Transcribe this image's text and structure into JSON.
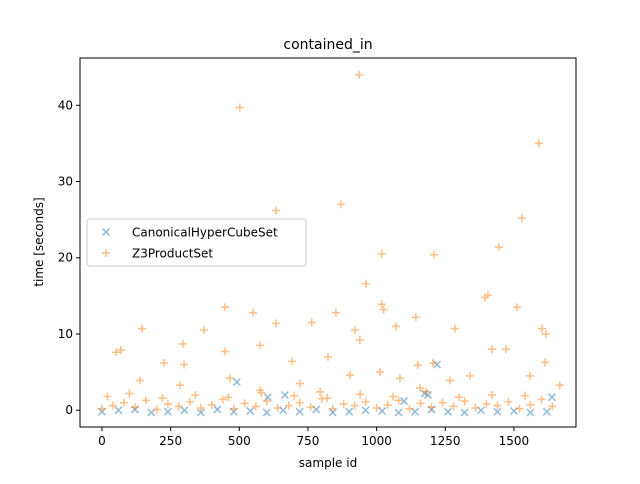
{
  "chart_data": {
    "type": "scatter",
    "title": "contained_in",
    "x_label": "sample id",
    "y_label": "time [seconds]",
    "xlim": [
      -80,
      1726
    ],
    "ylim": [
      -2.2,
      46.2
    ],
    "xticks": [
      0,
      250,
      500,
      750,
      1000,
      1250,
      1500
    ],
    "yticks": [
      0,
      10,
      20,
      30,
      40
    ],
    "grid": false,
    "legend": "center left",
    "series": [
      {
        "name": "CanonicalHyperCubeSet",
        "color": "#1f77b4",
        "marker": "x",
        "x": [
          0,
          60,
          120,
          180,
          240,
          300,
          360,
          420,
          480,
          540,
          600,
          660,
          720,
          780,
          840,
          900,
          960,
          1020,
          1080,
          1140,
          1200,
          1260,
          1320,
          1380,
          1440,
          1500,
          1560,
          1620,
          491,
          1220,
          1187,
          1638,
          666,
          604,
          1175,
          1100
        ],
        "values": [
          -0.2,
          0,
          0.1,
          -0.3,
          -0.2,
          0,
          -0.3,
          0.1,
          -0.2,
          -0.1,
          -0.3,
          0,
          -0.2,
          0.1,
          -0.3,
          -0.2,
          0,
          -0.1,
          -0.3,
          -0.2,
          0.1,
          -0.2,
          -0.3,
          0,
          -0.2,
          -0.1,
          -0.3,
          -0.2,
          3.7,
          6,
          2,
          1.7,
          2,
          1.7,
          2.2,
          1.2
        ]
      },
      {
        "name": "Z3ProductSet",
        "color": "#ff7f0e",
        "marker": "+",
        "x": [
          936,
          502,
          1591,
          870,
          633,
          1529,
          1445,
          1019,
          1209,
          961,
          1405,
          1394,
          448,
          1019,
          1511,
          550,
          852,
          1026,
          1143,
          146,
          371,
          633,
          764,
          1070,
          1285,
          1602,
          1616,
          921,
          939,
          295,
          575,
          51,
          69,
          1420,
          1471,
          1613,
          226,
          299,
          692,
          823,
          1205,
          1150,
          448,
          138,
          284,
          466,
          721,
          903,
          1012,
          1085,
          1267,
          1340,
          1558,
          1667,
          575,
          794,
          1158,
          0,
          40,
          80,
          120,
          160,
          200,
          240,
          280,
          320,
          360,
          400,
          440,
          480,
          520,
          560,
          600,
          640,
          680,
          720,
          760,
          800,
          840,
          880,
          920,
          960,
          1000,
          1040,
          1080,
          1120,
          1160,
          1200,
          1240,
          1280,
          1320,
          1360,
          1400,
          1440,
          1480,
          1520,
          1560,
          1600,
          1640,
          20,
          100,
          220,
          340,
          460,
          580,
          700,
          820,
          940,
          1060,
          1180,
          1300,
          1420,
          1540
        ],
        "values": [
          44,
          39.7,
          35,
          27,
          26.2,
          25.2,
          21.4,
          20.5,
          20.4,
          16.6,
          15.1,
          14.8,
          13.5,
          13.9,
          13.5,
          12.8,
          12.8,
          13.2,
          12.2,
          10.7,
          10.5,
          11.4,
          11.5,
          11,
          10.7,
          10.7,
          10,
          10.5,
          9.2,
          8.7,
          8.5,
          7.6,
          7.9,
          8,
          8,
          6.3,
          6.2,
          6,
          6.4,
          7,
          6.2,
          5.9,
          7.7,
          3.9,
          3.3,
          4.2,
          3.5,
          4.6,
          5,
          4.2,
          3.9,
          4.5,
          4.5,
          3.3,
          2.6,
          2.4,
          2.9,
          0.2,
          0.6,
          1,
          0.4,
          1.3,
          0.1,
          0.8,
          0.5,
          1.1,
          0.3,
          0.7,
          1.4,
          0.2,
          0.9,
          0.5,
          1.2,
          0.3,
          0.6,
          1,
          0.4,
          1.5,
          0.2,
          0.8,
          0.6,
          1.1,
          0.3,
          0.7,
          1.3,
          0.2,
          0.9,
          0.4,
          1,
          0.5,
          1.2,
          0.3,
          0.8,
          0.6,
          1.1,
          0.2,
          0.7,
          1.4,
          0.5,
          1.8,
          2.2,
          1.6,
          2,
          1.7,
          2.3,
          1.9,
          1.6,
          2.1,
          1.8,
          2.4,
          1.7,
          2,
          1.9
        ]
      }
    ]
  }
}
